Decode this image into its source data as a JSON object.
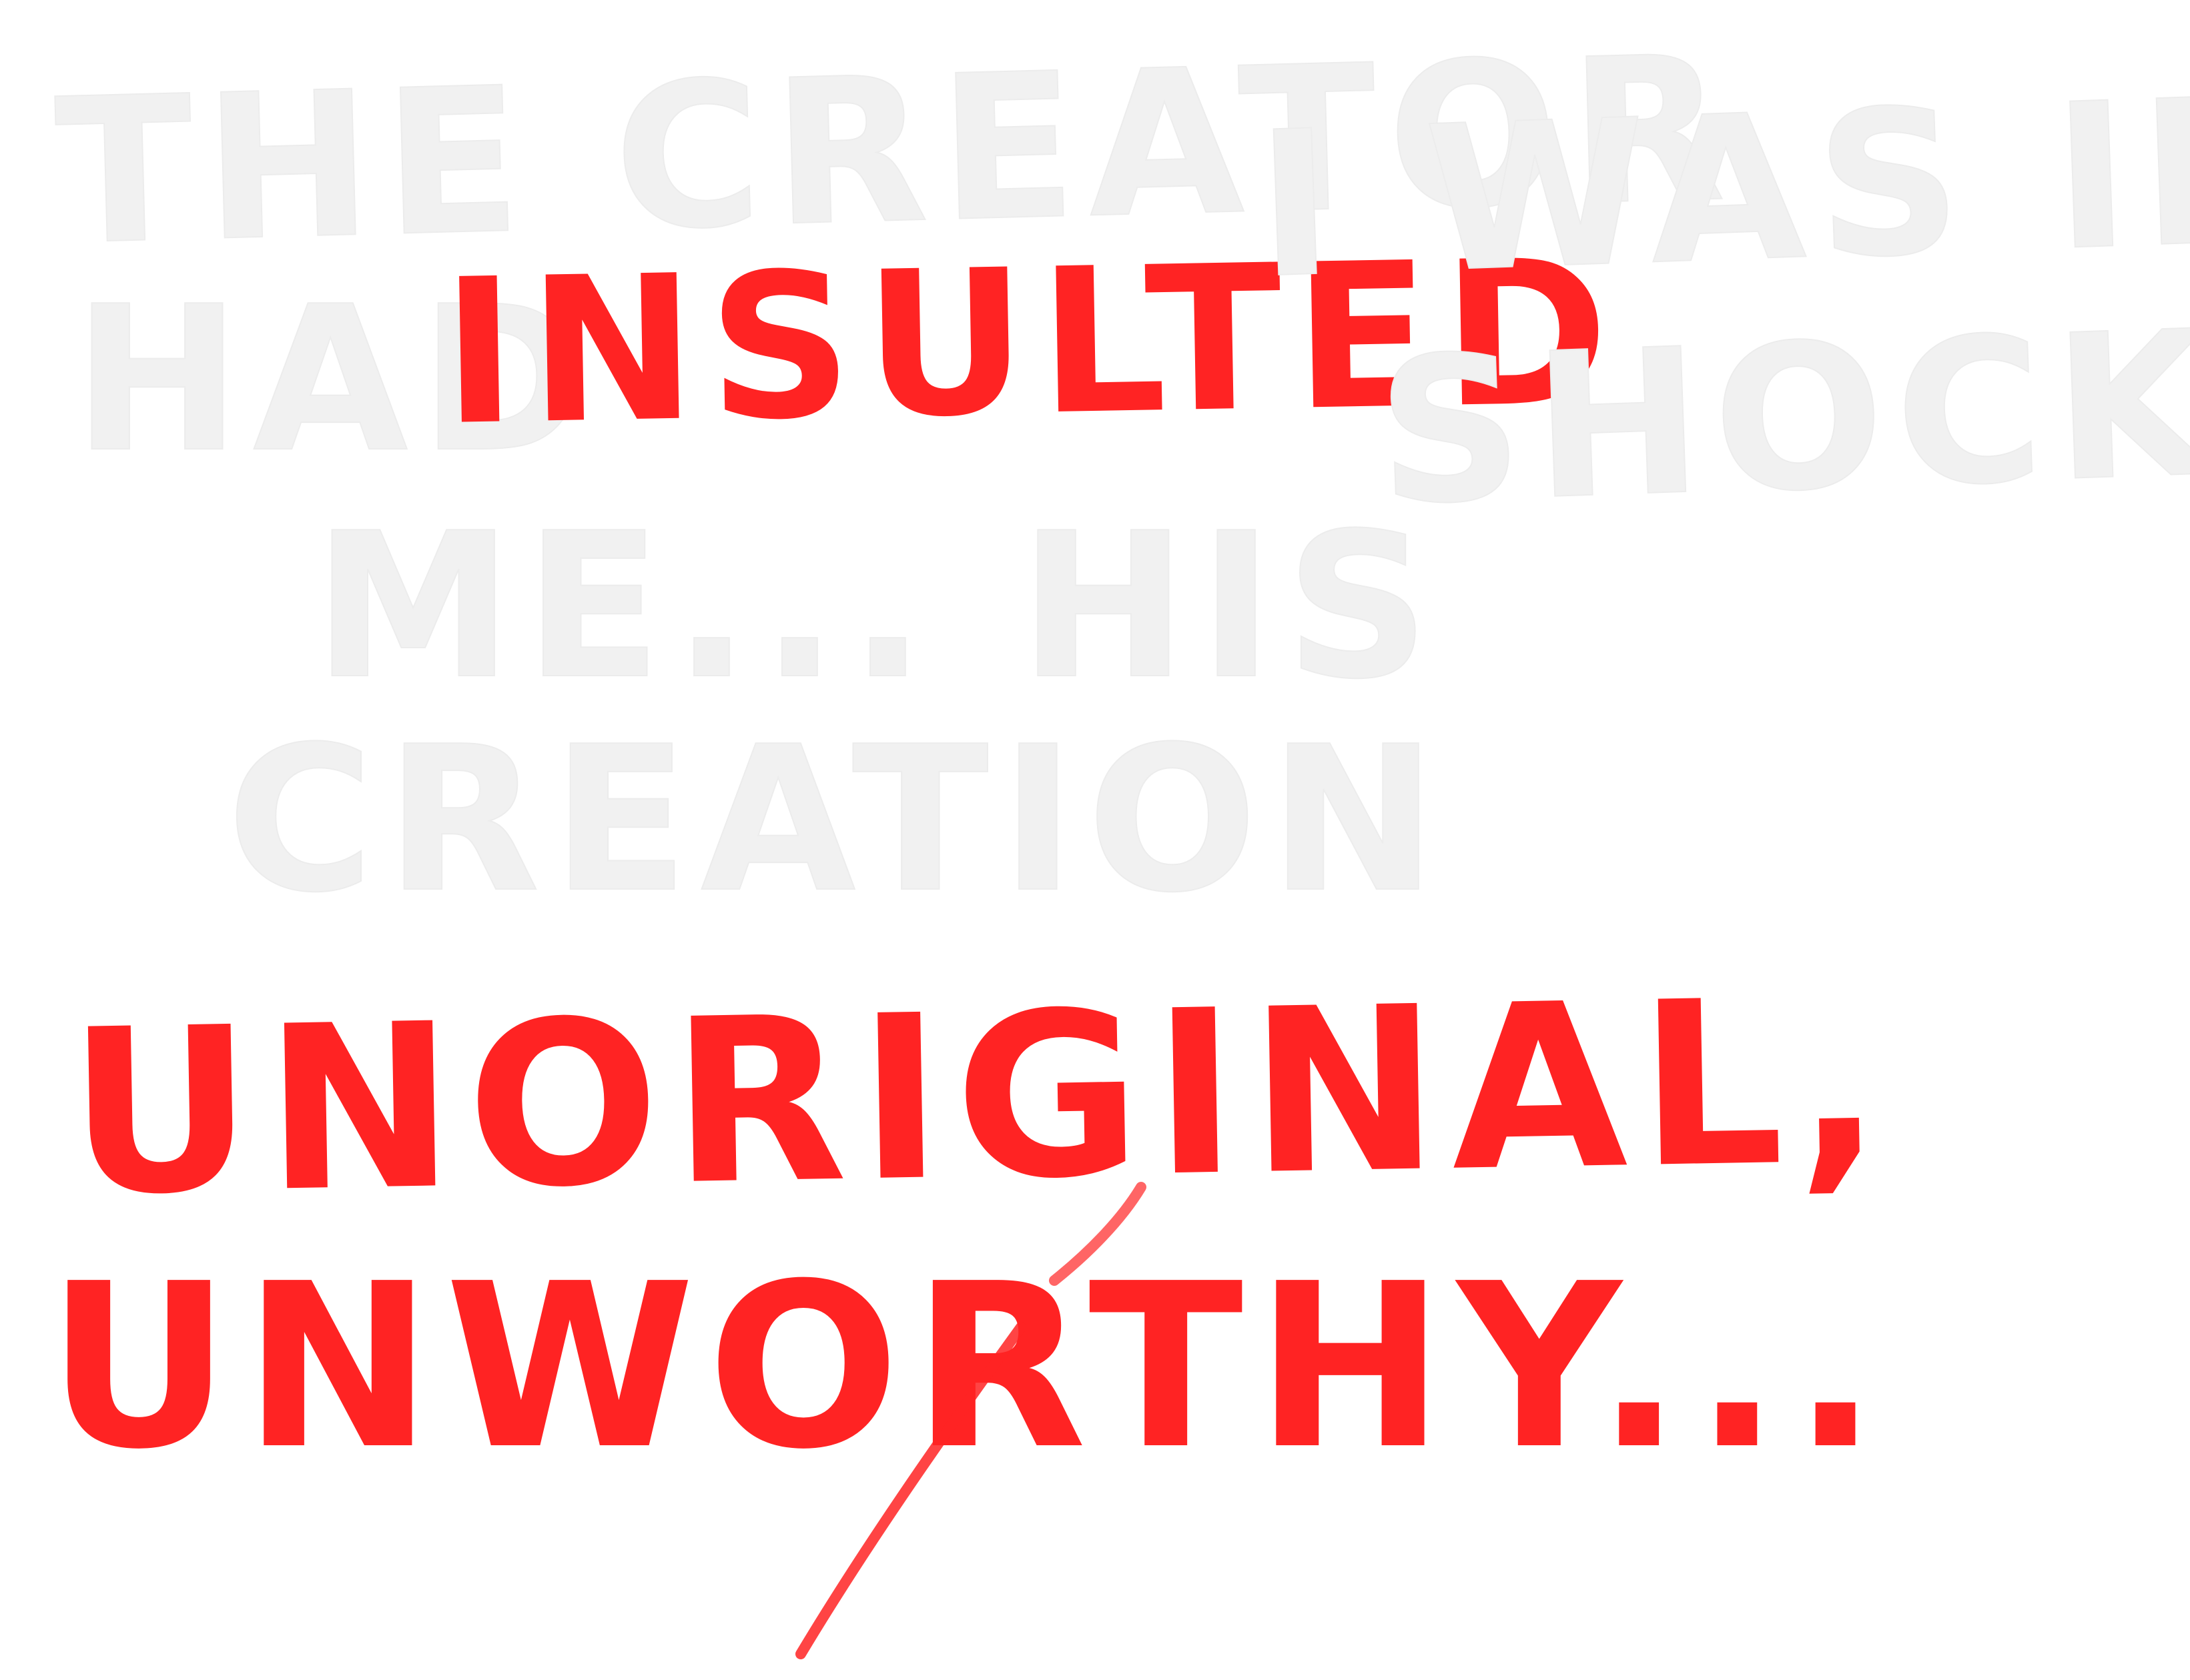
{
  "narration": {
    "line_1": "THE CREATOR",
    "line_2_lead": "HAD",
    "line_2_emphasis": "INSULTED",
    "line_3": "ME... HIS",
    "line_4": "CREATION",
    "right_1": "I WAS IN",
    "right_2": "SHOCK."
  },
  "exclamation": {
    "word_1": "UNORIGINAL,",
    "word_2": "UNWORTHY..."
  },
  "colors": {
    "background": "#ffffff",
    "faint_text": "#f1f1f1",
    "emphasis_red": "#ff2323"
  }
}
